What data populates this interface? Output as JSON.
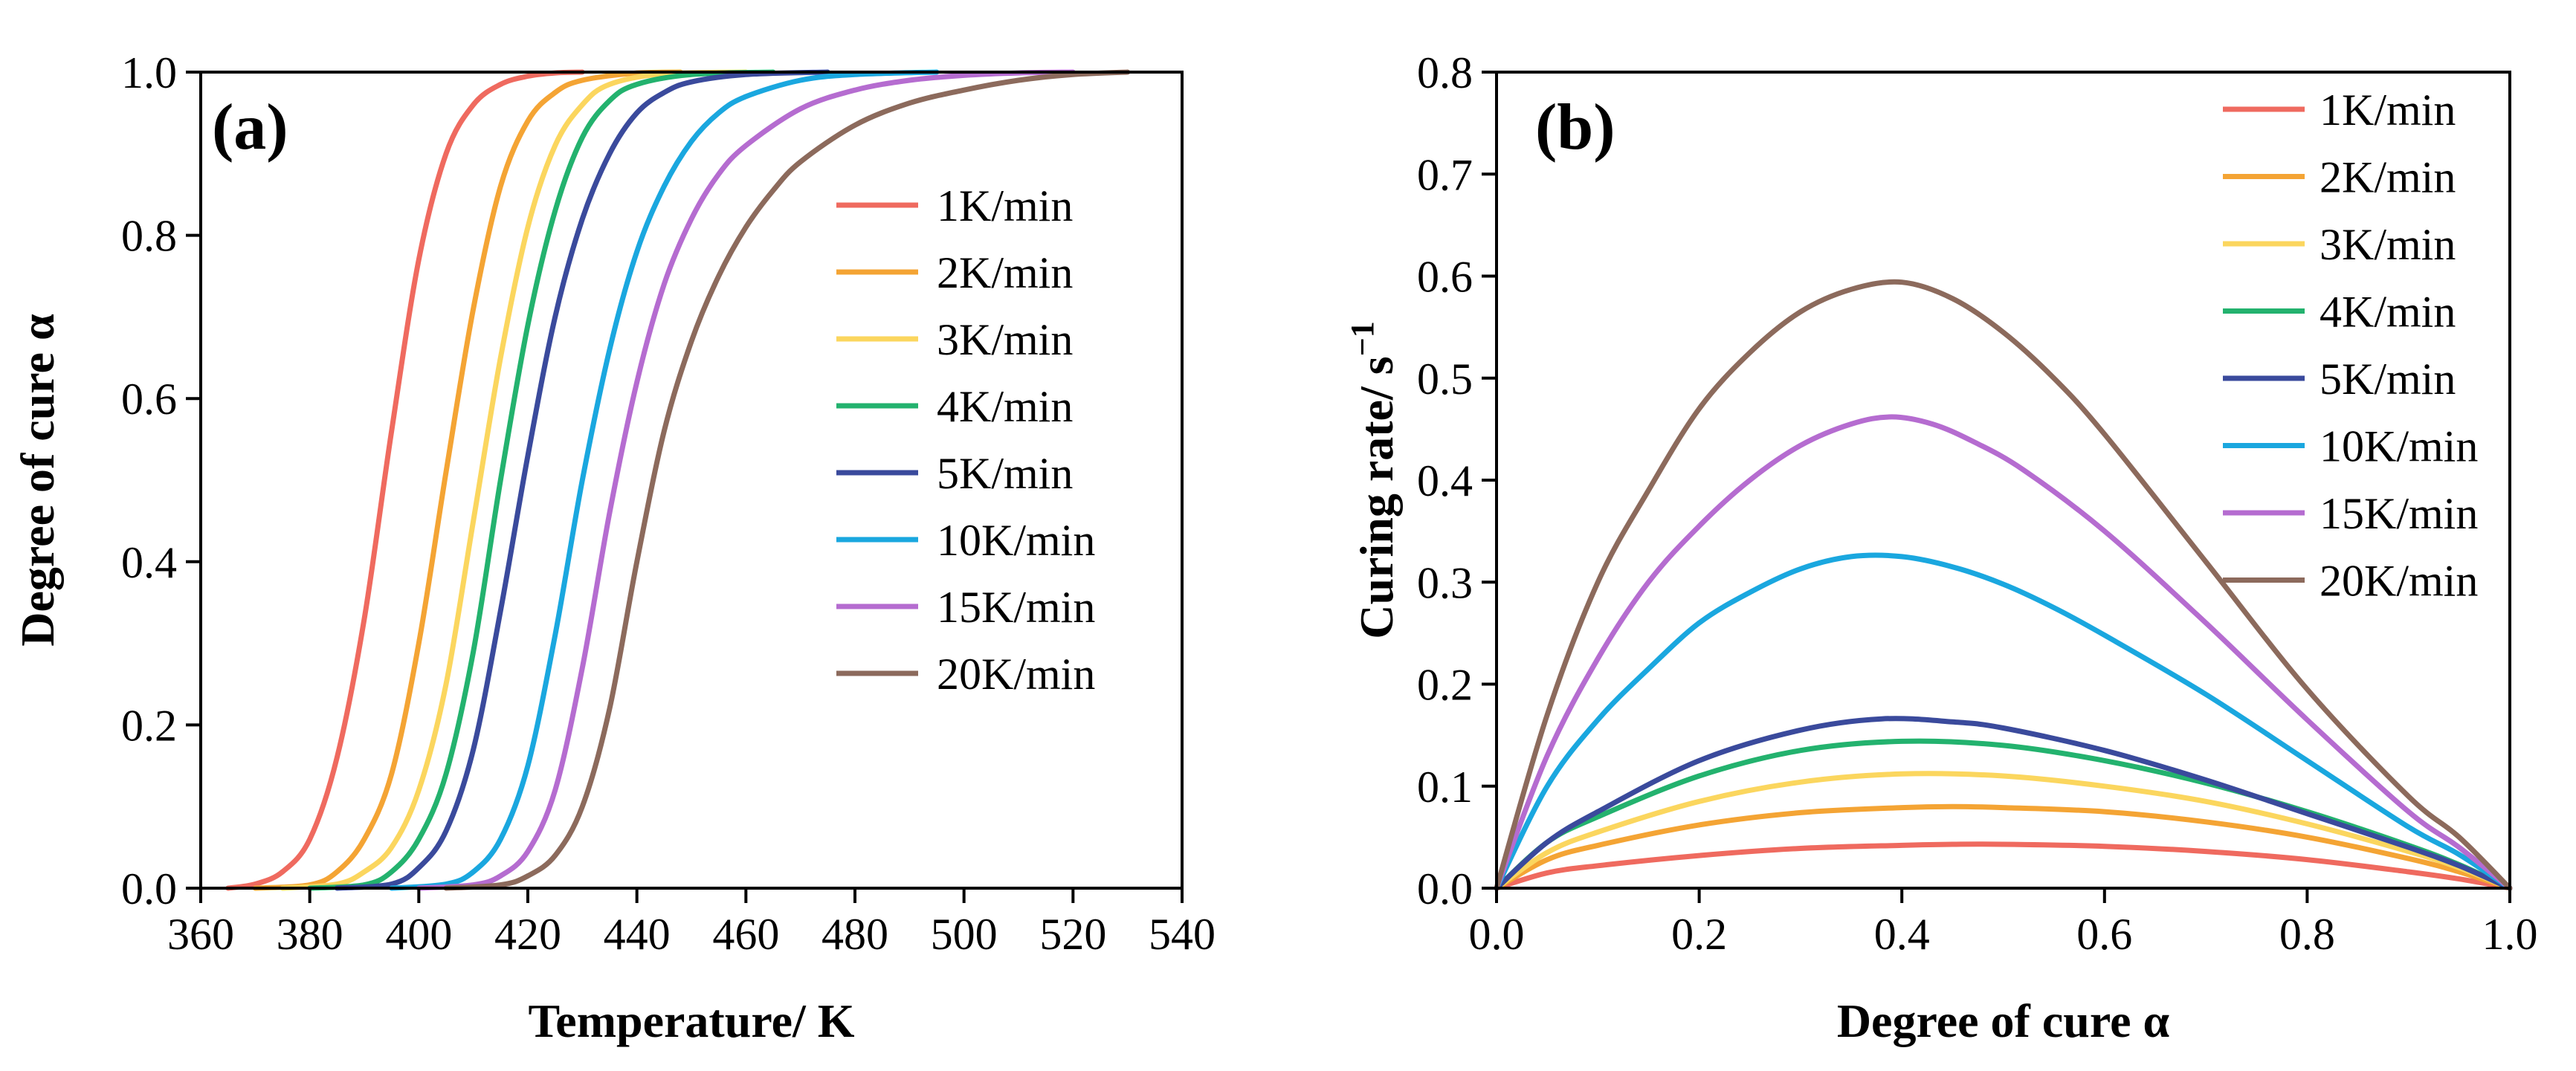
{
  "colors": [
    "#ef6a5f",
    "#f4a434",
    "#fbd65e",
    "#23b26e",
    "#3a4a9c",
    "#1aa7df",
    "#b56cd0",
    "#8c6a5c"
  ],
  "chart_data": [
    {
      "type": "line",
      "panel_label": "(a)",
      "xlabel": "Temperature/ K",
      "ylabel": "Degree of cure α",
      "xlim": [
        360,
        540
      ],
      "ylim": [
        0,
        1.0
      ],
      "xticks": [
        360,
        380,
        400,
        420,
        440,
        460,
        480,
        500,
        520,
        540
      ],
      "xtick_labels": [
        "360",
        "380",
        "400",
        "420",
        "440",
        "460",
        "480",
        "500",
        "520",
        "540"
      ],
      "yticks": [
        0,
        0.2,
        0.4,
        0.6,
        0.8,
        1.0
      ],
      "ytick_labels": [
        "0.0",
        "0.2",
        "0.4",
        "0.6",
        "0.8",
        "1.0"
      ],
      "legend_position": "center-right",
      "series": [
        {
          "name": "1K/min",
          "x": [
            365,
            370,
            375,
            380,
            385,
            390,
            395,
            400,
            405,
            410,
            415,
            420,
            425,
            430
          ],
          "values": [
            0,
            0.005,
            0.02,
            0.06,
            0.16,
            0.33,
            0.56,
            0.77,
            0.9,
            0.96,
            0.985,
            0.995,
            0.999,
            1.0
          ]
        },
        {
          "name": "2K/min",
          "x": [
            370,
            380,
            385,
            390,
            395,
            400,
            405,
            410,
            415,
            420,
            425,
            430,
            440,
            448
          ],
          "values": [
            0,
            0.004,
            0.02,
            0.06,
            0.14,
            0.3,
            0.51,
            0.71,
            0.86,
            0.94,
            0.975,
            0.99,
            0.999,
            1.0
          ]
        },
        {
          "name": "3K/min",
          "x": [
            375,
            385,
            390,
            395,
            400,
            405,
            410,
            415,
            420,
            425,
            430,
            435,
            445,
            460
          ],
          "values": [
            0,
            0.005,
            0.02,
            0.05,
            0.12,
            0.25,
            0.45,
            0.65,
            0.81,
            0.91,
            0.96,
            0.985,
            0.998,
            1.0
          ]
        },
        {
          "name": "4K/min",
          "x": [
            380,
            390,
            395,
            400,
            405,
            410,
            415,
            420,
            425,
            430,
            435,
            440,
            450,
            465
          ],
          "values": [
            0,
            0.004,
            0.02,
            0.06,
            0.14,
            0.29,
            0.5,
            0.69,
            0.83,
            0.92,
            0.965,
            0.985,
            0.997,
            1.0
          ]
        },
        {
          "name": "5K/min",
          "x": [
            385,
            395,
            400,
            405,
            410,
            415,
            420,
            425,
            430,
            435,
            440,
            445,
            450,
            460,
            475
          ],
          "values": [
            0,
            0.005,
            0.025,
            0.07,
            0.17,
            0.34,
            0.53,
            0.7,
            0.82,
            0.9,
            0.95,
            0.975,
            0.988,
            0.997,
            1.0
          ]
        },
        {
          "name": "10K/min",
          "x": [
            395,
            405,
            410,
            415,
            420,
            425,
            430,
            435,
            440,
            445,
            450,
            455,
            460,
            470,
            480,
            495
          ],
          "values": [
            0,
            0.005,
            0.02,
            0.06,
            0.15,
            0.31,
            0.5,
            0.66,
            0.78,
            0.86,
            0.915,
            0.95,
            0.97,
            0.99,
            0.997,
            1.0
          ]
        },
        {
          "name": "15K/min",
          "x": [
            400,
            410,
            415,
            420,
            425,
            430,
            435,
            440,
            445,
            450,
            455,
            460,
            470,
            480,
            490,
            500,
            510,
            520
          ],
          "values": [
            0,
            0.004,
            0.015,
            0.045,
            0.12,
            0.27,
            0.46,
            0.62,
            0.74,
            0.82,
            0.875,
            0.91,
            0.955,
            0.978,
            0.99,
            0.996,
            0.999,
            1.0
          ]
        },
        {
          "name": "20K/min",
          "x": [
            405,
            415,
            420,
            425,
            430,
            435,
            440,
            445,
            450,
            455,
            460,
            465,
            470,
            480,
            490,
            500,
            510,
            520,
            530
          ],
          "values": [
            0,
            0.004,
            0.015,
            0.04,
            0.1,
            0.22,
            0.4,
            0.56,
            0.67,
            0.75,
            0.81,
            0.855,
            0.89,
            0.935,
            0.962,
            0.978,
            0.99,
            0.997,
            1.0
          ]
        }
      ]
    },
    {
      "type": "line",
      "panel_label": "(b)",
      "xlabel": "Degree of cure α",
      "ylabel": "Curing rate/ s",
      "ylabel_superscript": "−1",
      "xlim": [
        0,
        1.0
      ],
      "ylim": [
        0,
        0.8
      ],
      "xticks": [
        0,
        0.2,
        0.4,
        0.6,
        0.8,
        1.0
      ],
      "xtick_labels": [
        "0.0",
        "0.2",
        "0.4",
        "0.6",
        "0.8",
        "1.0"
      ],
      "yticks": [
        0,
        0.1,
        0.2,
        0.3,
        0.4,
        0.5,
        0.6,
        0.7,
        0.8
      ],
      "ytick_labels": [
        "0.0",
        "0.1",
        "0.2",
        "0.3",
        "0.4",
        "0.5",
        "0.6",
        "0.7",
        "0.8"
      ],
      "legend_position": "top-right",
      "series": [
        {
          "name": "1K/min",
          "x": [
            0,
            0.05,
            0.1,
            0.2,
            0.3,
            0.4,
            0.45,
            0.5,
            0.6,
            0.7,
            0.8,
            0.9,
            0.95,
            1.0
          ],
          "values": [
            0,
            0.015,
            0.022,
            0.032,
            0.039,
            0.042,
            0.043,
            0.043,
            0.041,
            0.036,
            0.028,
            0.016,
            0.009,
            0
          ]
        },
        {
          "name": "2K/min",
          "x": [
            0,
            0.05,
            0.1,
            0.2,
            0.3,
            0.4,
            0.45,
            0.5,
            0.6,
            0.7,
            0.8,
            0.9,
            0.95,
            1.0
          ],
          "values": [
            0,
            0.028,
            0.042,
            0.062,
            0.074,
            0.079,
            0.08,
            0.079,
            0.075,
            0.065,
            0.05,
            0.029,
            0.016,
            0
          ]
        },
        {
          "name": "3K/min",
          "x": [
            0,
            0.05,
            0.1,
            0.2,
            0.3,
            0.4,
            0.5,
            0.6,
            0.7,
            0.8,
            0.9,
            0.95,
            1.0
          ],
          "values": [
            0,
            0.035,
            0.055,
            0.085,
            0.104,
            0.112,
            0.11,
            0.1,
            0.085,
            0.063,
            0.036,
            0.02,
            0
          ]
        },
        {
          "name": "4K/min",
          "x": [
            0,
            0.05,
            0.1,
            0.2,
            0.3,
            0.4,
            0.5,
            0.6,
            0.7,
            0.8,
            0.9,
            0.95,
            1.0
          ],
          "values": [
            0,
            0.045,
            0.07,
            0.11,
            0.135,
            0.144,
            0.14,
            0.125,
            0.103,
            0.075,
            0.042,
            0.023,
            0
          ]
        },
        {
          "name": "5K/min",
          "x": [
            0,
            0.05,
            0.1,
            0.2,
            0.3,
            0.38,
            0.45,
            0.5,
            0.6,
            0.7,
            0.8,
            0.9,
            0.95,
            1.0
          ],
          "values": [
            0,
            0.045,
            0.075,
            0.125,
            0.155,
            0.166,
            0.163,
            0.157,
            0.135,
            0.106,
            0.073,
            0.04,
            0.022,
            0
          ]
        },
        {
          "name": "10K/min",
          "x": [
            0,
            0.05,
            0.1,
            0.15,
            0.2,
            0.25,
            0.3,
            0.35,
            0.4,
            0.45,
            0.5,
            0.55,
            0.6,
            0.7,
            0.8,
            0.9,
            0.95,
            1.0
          ],
          "values": [
            0,
            0.1,
            0.165,
            0.215,
            0.26,
            0.29,
            0.313,
            0.325,
            0.325,
            0.315,
            0.298,
            0.275,
            0.248,
            0.19,
            0.125,
            0.06,
            0.033,
            0
          ]
        },
        {
          "name": "15K/min",
          "x": [
            0,
            0.05,
            0.1,
            0.15,
            0.2,
            0.25,
            0.3,
            0.35,
            0.39,
            0.43,
            0.47,
            0.52,
            0.6,
            0.7,
            0.8,
            0.9,
            0.95,
            1.0
          ],
          "values": [
            0,
            0.13,
            0.225,
            0.3,
            0.355,
            0.4,
            0.434,
            0.455,
            0.462,
            0.455,
            0.438,
            0.41,
            0.35,
            0.26,
            0.165,
            0.075,
            0.04,
            0
          ]
        },
        {
          "name": "20K/min",
          "x": [
            0,
            0.05,
            0.1,
            0.15,
            0.2,
            0.25,
            0.3,
            0.35,
            0.4,
            0.45,
            0.5,
            0.55,
            0.6,
            0.7,
            0.8,
            0.9,
            0.95,
            1.0
          ],
          "values": [
            0,
            0.17,
            0.3,
            0.39,
            0.47,
            0.525,
            0.565,
            0.587,
            0.594,
            0.578,
            0.545,
            0.5,
            0.445,
            0.32,
            0.195,
            0.09,
            0.05,
            0
          ]
        }
      ]
    }
  ]
}
